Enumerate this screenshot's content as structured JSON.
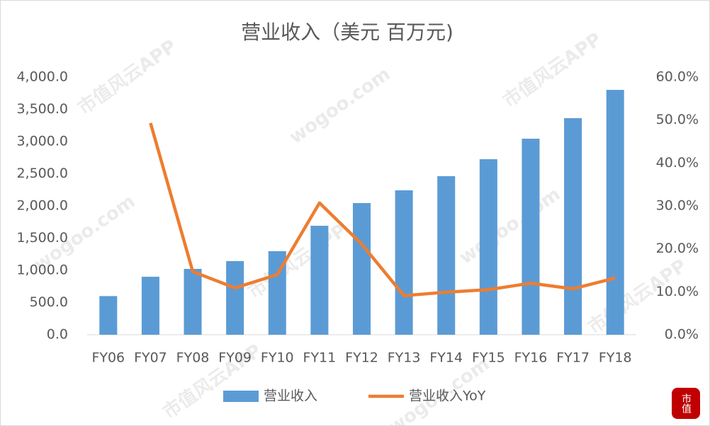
{
  "chart_data": {
    "type": "bar-line",
    "title": "营业收入（美元 百万元)",
    "categories": [
      "FY06",
      "FY07",
      "FY08",
      "FY09",
      "FY10",
      "FY11",
      "FY12",
      "FY13",
      "FY14",
      "FY15",
      "FY16",
      "FY17",
      "FY18"
    ],
    "series": [
      {
        "name": "营业收入",
        "color": "#5b9bd5",
        "type": "bar",
        "values": [
          600,
          900,
          1022,
          1143,
          1297,
          1692,
          2044,
          2242,
          2462,
          2725,
          3044,
          3363,
          3802
        ]
      },
      {
        "name": "营业收入YoY",
        "color": "#ed7d31",
        "type": "line",
        "axis": "y2",
        "values": [
          null,
          49.3,
          14.7,
          10.9,
          14.0,
          30.7,
          21.1,
          9.1,
          9.9,
          10.5,
          12.0,
          10.7,
          13.2
        ]
      }
    ],
    "ylim": [
      0,
      4000
    ],
    "yticks": [
      {
        "value": 0,
        "label": "0.0"
      },
      {
        "value": 500,
        "label": "500.0"
      },
      {
        "value": 1000,
        "label": "1,000.0"
      },
      {
        "value": 1500,
        "label": "1,500.0"
      },
      {
        "value": 2000,
        "label": "2,000.0"
      },
      {
        "value": 2500,
        "label": "2,500.0"
      },
      {
        "value": 3000,
        "label": "3,000.0"
      },
      {
        "value": 3500,
        "label": "3,500.0"
      },
      {
        "value": 4000,
        "label": "4,000.0"
      }
    ],
    "y2lim": [
      0,
      60
    ],
    "y2ticks": [
      {
        "value": 0,
        "label": "0.0%"
      },
      {
        "value": 10,
        "label": "10.0%"
      },
      {
        "value": 20,
        "label": "20.0%"
      },
      {
        "value": 30,
        "label": "30.0%"
      },
      {
        "value": 40,
        "label": "40.0%"
      },
      {
        "value": 50,
        "label": "50.0%"
      },
      {
        "value": 60,
        "label": "60.0%"
      }
    ],
    "grid": false,
    "legend": "bottom",
    "watermarks": [
      "市值风云APP",
      "wogoo.com"
    ],
    "logo": "市值"
  }
}
